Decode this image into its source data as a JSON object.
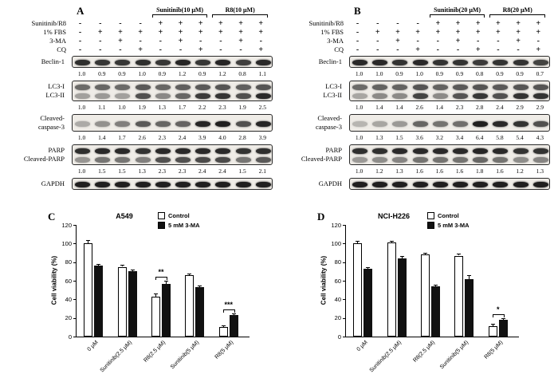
{
  "blot_panels": [
    {
      "panel_letter": "A",
      "treatment_brackets": [
        {
          "label": "Sunitinib(10 μM)",
          "start_lane": 4,
          "end_lane": 6
        },
        {
          "label": "R8(10 μM)",
          "start_lane": 7,
          "end_lane": 9
        }
      ],
      "condition_rows": [
        {
          "label": "Sunitinib/R8",
          "signs": [
            "-",
            "-",
            "-",
            "-",
            "+",
            "+",
            "+",
            "+",
            "+",
            "+"
          ]
        },
        {
          "label": "1% FBS",
          "signs": [
            "-",
            "+",
            "+",
            "+",
            "+",
            "+",
            "+",
            "+",
            "+",
            "+"
          ]
        },
        {
          "label": "3-MA",
          "signs": [
            "-",
            "-",
            "+",
            "-",
            "-",
            "+",
            "-",
            "-",
            "+",
            "-"
          ]
        },
        {
          "label": "CQ",
          "signs": [
            "-",
            "-",
            "-",
            "+",
            "-",
            "-",
            "+",
            "-",
            "-",
            "+"
          ]
        }
      ],
      "blots": [
        {
          "labels": [
            "Beclin-1"
          ],
          "quantification": [
            "1.0",
            "0.9",
            "0.9",
            "1.0",
            "0.9",
            "1.2",
            "0.9",
            "1.2",
            "0.8",
            "1.1"
          ],
          "band_rows": [
            [
              0.88,
              0.84,
              0.84,
              0.88,
              0.84,
              0.92,
              0.84,
              0.92,
              0.8,
              0.9
            ]
          ]
        },
        {
          "labels": [
            "LC3-I",
            "LC3-II"
          ],
          "quantification": [
            "1.0",
            "1.1",
            "1.0",
            "1.9",
            "1.3",
            "1.7",
            "2.2",
            "2.3",
            "1.9",
            "2.5"
          ],
          "band_rows": [
            [
              0.6,
              0.62,
              0.6,
              0.68,
              0.62,
              0.65,
              0.68,
              0.7,
              0.65,
              0.7
            ],
            [
              0.35,
              0.38,
              0.35,
              0.72,
              0.46,
              0.62,
              0.82,
              0.85,
              0.72,
              0.9
            ]
          ]
        },
        {
          "labels": [
            "Cleaved-",
            "caspase-3"
          ],
          "quantification": [
            "1.0",
            "1.4",
            "1.7",
            "2.6",
            "2.3",
            "2.4",
            "3.9",
            "4.0",
            "2.8",
            "3.9"
          ],
          "band_rows": [
            [
              0.3,
              0.42,
              0.5,
              0.68,
              0.62,
              0.63,
              0.92,
              0.95,
              0.72,
              0.92
            ]
          ]
        },
        {
          "labels": [
            "PARP",
            "Cleaved-PARP"
          ],
          "quantification": [
            "1.0",
            "1.5",
            "1.5",
            "1.3",
            "2.3",
            "2.3",
            "2.4",
            "2.4",
            "1.5",
            "2.1"
          ],
          "band_rows": [
            [
              0.88,
              0.9,
              0.9,
              0.86,
              0.9,
              0.9,
              0.9,
              0.9,
              0.86,
              0.88
            ],
            [
              0.4,
              0.55,
              0.55,
              0.5,
              0.72,
              0.72,
              0.75,
              0.75,
              0.55,
              0.68
            ]
          ]
        },
        {
          "labels": [
            "GAPDH"
          ],
          "quantification": null,
          "band_rows": [
            [
              0.95,
              0.95,
              0.95,
              0.95,
              0.95,
              0.95,
              0.95,
              0.95,
              0.95,
              0.95
            ]
          ]
        }
      ]
    },
    {
      "panel_letter": "B",
      "treatment_brackets": [
        {
          "label": "Sunitinib(20 μM)",
          "start_lane": 4,
          "end_lane": 6
        },
        {
          "label": "R8(20 μM)",
          "start_lane": 7,
          "end_lane": 9
        }
      ],
      "condition_rows": [
        {
          "label": "Sunitinib/R8",
          "signs": [
            "-",
            "-",
            "-",
            "-",
            "+",
            "+",
            "+",
            "+",
            "+",
            "+"
          ]
        },
        {
          "label": "1% FBS",
          "signs": [
            "-",
            "+",
            "+",
            "+",
            "+",
            "+",
            "+",
            "+",
            "+",
            "+"
          ]
        },
        {
          "label": "3-MA",
          "signs": [
            "-",
            "-",
            "+",
            "-",
            "-",
            "+",
            "-",
            "-",
            "+",
            "-"
          ]
        },
        {
          "label": "CQ",
          "signs": [
            "-",
            "-",
            "-",
            "+",
            "-",
            "-",
            "+",
            "-",
            "-",
            "+"
          ]
        }
      ],
      "blots": [
        {
          "labels": [
            "Beclin-1"
          ],
          "quantification": [
            "1.0",
            "1.0",
            "0.9",
            "1.0",
            "0.9",
            "0.9",
            "0.8",
            "0.9",
            "0.9",
            "0.7"
          ],
          "band_rows": [
            [
              0.9,
              0.9,
              0.86,
              0.9,
              0.86,
              0.86,
              0.82,
              0.86,
              0.86,
              0.78
            ]
          ]
        },
        {
          "labels": [
            "LC3-I",
            "LC3-II"
          ],
          "quantification": [
            "1.0",
            "1.4",
            "1.4",
            "2.6",
            "1.4",
            "2.3",
            "2.8",
            "2.4",
            "2.9",
            "2.9"
          ],
          "band_rows": [
            [
              0.6,
              0.64,
              0.64,
              0.7,
              0.64,
              0.68,
              0.7,
              0.68,
              0.7,
              0.7
            ],
            [
              0.32,
              0.45,
              0.45,
              0.78,
              0.45,
              0.7,
              0.84,
              0.72,
              0.86,
              0.86
            ]
          ]
        },
        {
          "labels": [
            "Cleaved-",
            "caspase-3"
          ],
          "quantification": [
            "1.0",
            "1.3",
            "1.5",
            "3.6",
            "3.2",
            "3.4",
            "6.4",
            "5.8",
            "5.4",
            "4.3"
          ],
          "band_rows": [
            [
              0.25,
              0.32,
              0.38,
              0.62,
              0.56,
              0.58,
              0.95,
              0.9,
              0.86,
              0.72
            ]
          ]
        },
        {
          "labels": [
            "PARP",
            "Cleaved-PARP"
          ],
          "quantification": [
            "1.0",
            "1.2",
            "1.3",
            "1.6",
            "1.6",
            "1.6",
            "1.8",
            "1.6",
            "1.2",
            "1.3"
          ],
          "band_rows": [
            [
              0.88,
              0.88,
              0.9,
              0.9,
              0.9,
              0.9,
              0.92,
              0.9,
              0.86,
              0.86
            ],
            [
              0.38,
              0.44,
              0.48,
              0.56,
              0.56,
              0.56,
              0.62,
              0.56,
              0.44,
              0.48
            ]
          ]
        },
        {
          "labels": [
            "GAPDH"
          ],
          "quantification": null,
          "band_rows": [
            [
              0.95,
              0.95,
              0.95,
              0.95,
              0.95,
              0.95,
              0.95,
              0.95,
              0.95,
              0.95
            ]
          ]
        }
      ]
    }
  ],
  "chart_data": [
    {
      "type": "bar",
      "panel_label": "C",
      "title": "A549",
      "xlabel": "",
      "ylabel": "Cell viability (%)",
      "ylim": [
        0,
        120
      ],
      "yticks": [
        0,
        20,
        40,
        60,
        80,
        100,
        120
      ],
      "grid": false,
      "legend_position": "top-right",
      "categories": [
        "0 μM",
        "Sunitinib(2.5 μM)",
        "R8(2.5 μM)",
        "Sunitinib(5 μM)",
        "R8(5 μM)"
      ],
      "series": [
        {
          "name": "Control",
          "fill": "#ffffff",
          "values": [
            100,
            75,
            43,
            66,
            10
          ],
          "errors": [
            4,
            2,
            3,
            2,
            2
          ]
        },
        {
          "name": "5 mM 3-MA",
          "fill": "#111111",
          "values": [
            76,
            70,
            57,
            53,
            23
          ],
          "errors": [
            2,
            2,
            3,
            2,
            2
          ]
        }
      ],
      "significance": [
        {
          "category_index": 2,
          "label": "**"
        },
        {
          "category_index": 4,
          "label": "***"
        }
      ]
    },
    {
      "type": "bar",
      "panel_label": "D",
      "title": "NCI-H226",
      "xlabel": "",
      "ylabel": "Cell viability (%)",
      "ylim": [
        0,
        120
      ],
      "yticks": [
        0,
        20,
        40,
        60,
        80,
        100,
        120
      ],
      "grid": false,
      "legend_position": "top-right",
      "categories": [
        "0 μM",
        "Sunitinib(2.5 μM)",
        "R8(2.5 μM)",
        "Sunitinib(5 μM)",
        "R8(5 μM)"
      ],
      "series": [
        {
          "name": "Control",
          "fill": "#ffffff",
          "values": [
            100,
            101,
            88,
            87,
            11
          ],
          "errors": [
            3,
            2,
            2,
            2,
            3
          ]
        },
        {
          "name": "5 mM 3-MA",
          "fill": "#111111",
          "values": [
            73,
            84,
            54,
            62,
            18
          ],
          "errors": [
            2,
            3,
            2,
            4,
            2
          ]
        }
      ],
      "significance": [
        {
          "category_index": 4,
          "label": "*"
        }
      ]
    }
  ],
  "colors": {
    "band": "#151515",
    "blot_bg": "#efece7",
    "axis": "#000000"
  }
}
